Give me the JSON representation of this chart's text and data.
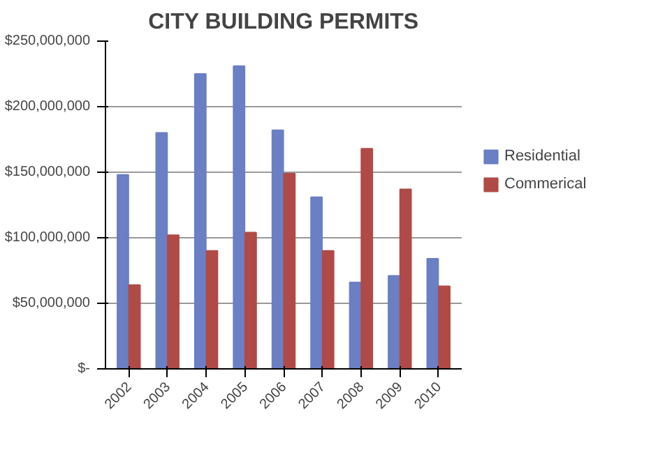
{
  "chart_data": {
    "type": "bar",
    "title": "CITY BUILDING PERMITS",
    "categories": [
      "2002",
      "2003",
      "2004",
      "2005",
      "2006",
      "2007",
      "2008",
      "2009",
      "2010"
    ],
    "series": [
      {
        "name": "Residential",
        "color": "#6a7fc4",
        "values": [
          148000000,
          180000000,
          225000000,
          231000000,
          182000000,
          131000000,
          66000000,
          71000000,
          84000000
        ]
      },
      {
        "name": "Commerical",
        "color": "#b04a47",
        "values": [
          64000000,
          102000000,
          90000000,
          104000000,
          149000000,
          90000000,
          168000000,
          137000000,
          63000000
        ]
      }
    ],
    "ylim": [
      0,
      250000000
    ],
    "yticks": [
      {
        "value": 0,
        "label": "$-"
      },
      {
        "value": 50000000,
        "label": "$50,000,000"
      },
      {
        "value": 100000000,
        "label": "$100,000,000"
      },
      {
        "value": 150000000,
        "label": "$150,000,000"
      },
      {
        "value": 200000000,
        "label": "$200,000,000"
      },
      {
        "value": 250000000,
        "label": "$250,000,000"
      }
    ],
    "grid": "y",
    "legend": "right"
  }
}
